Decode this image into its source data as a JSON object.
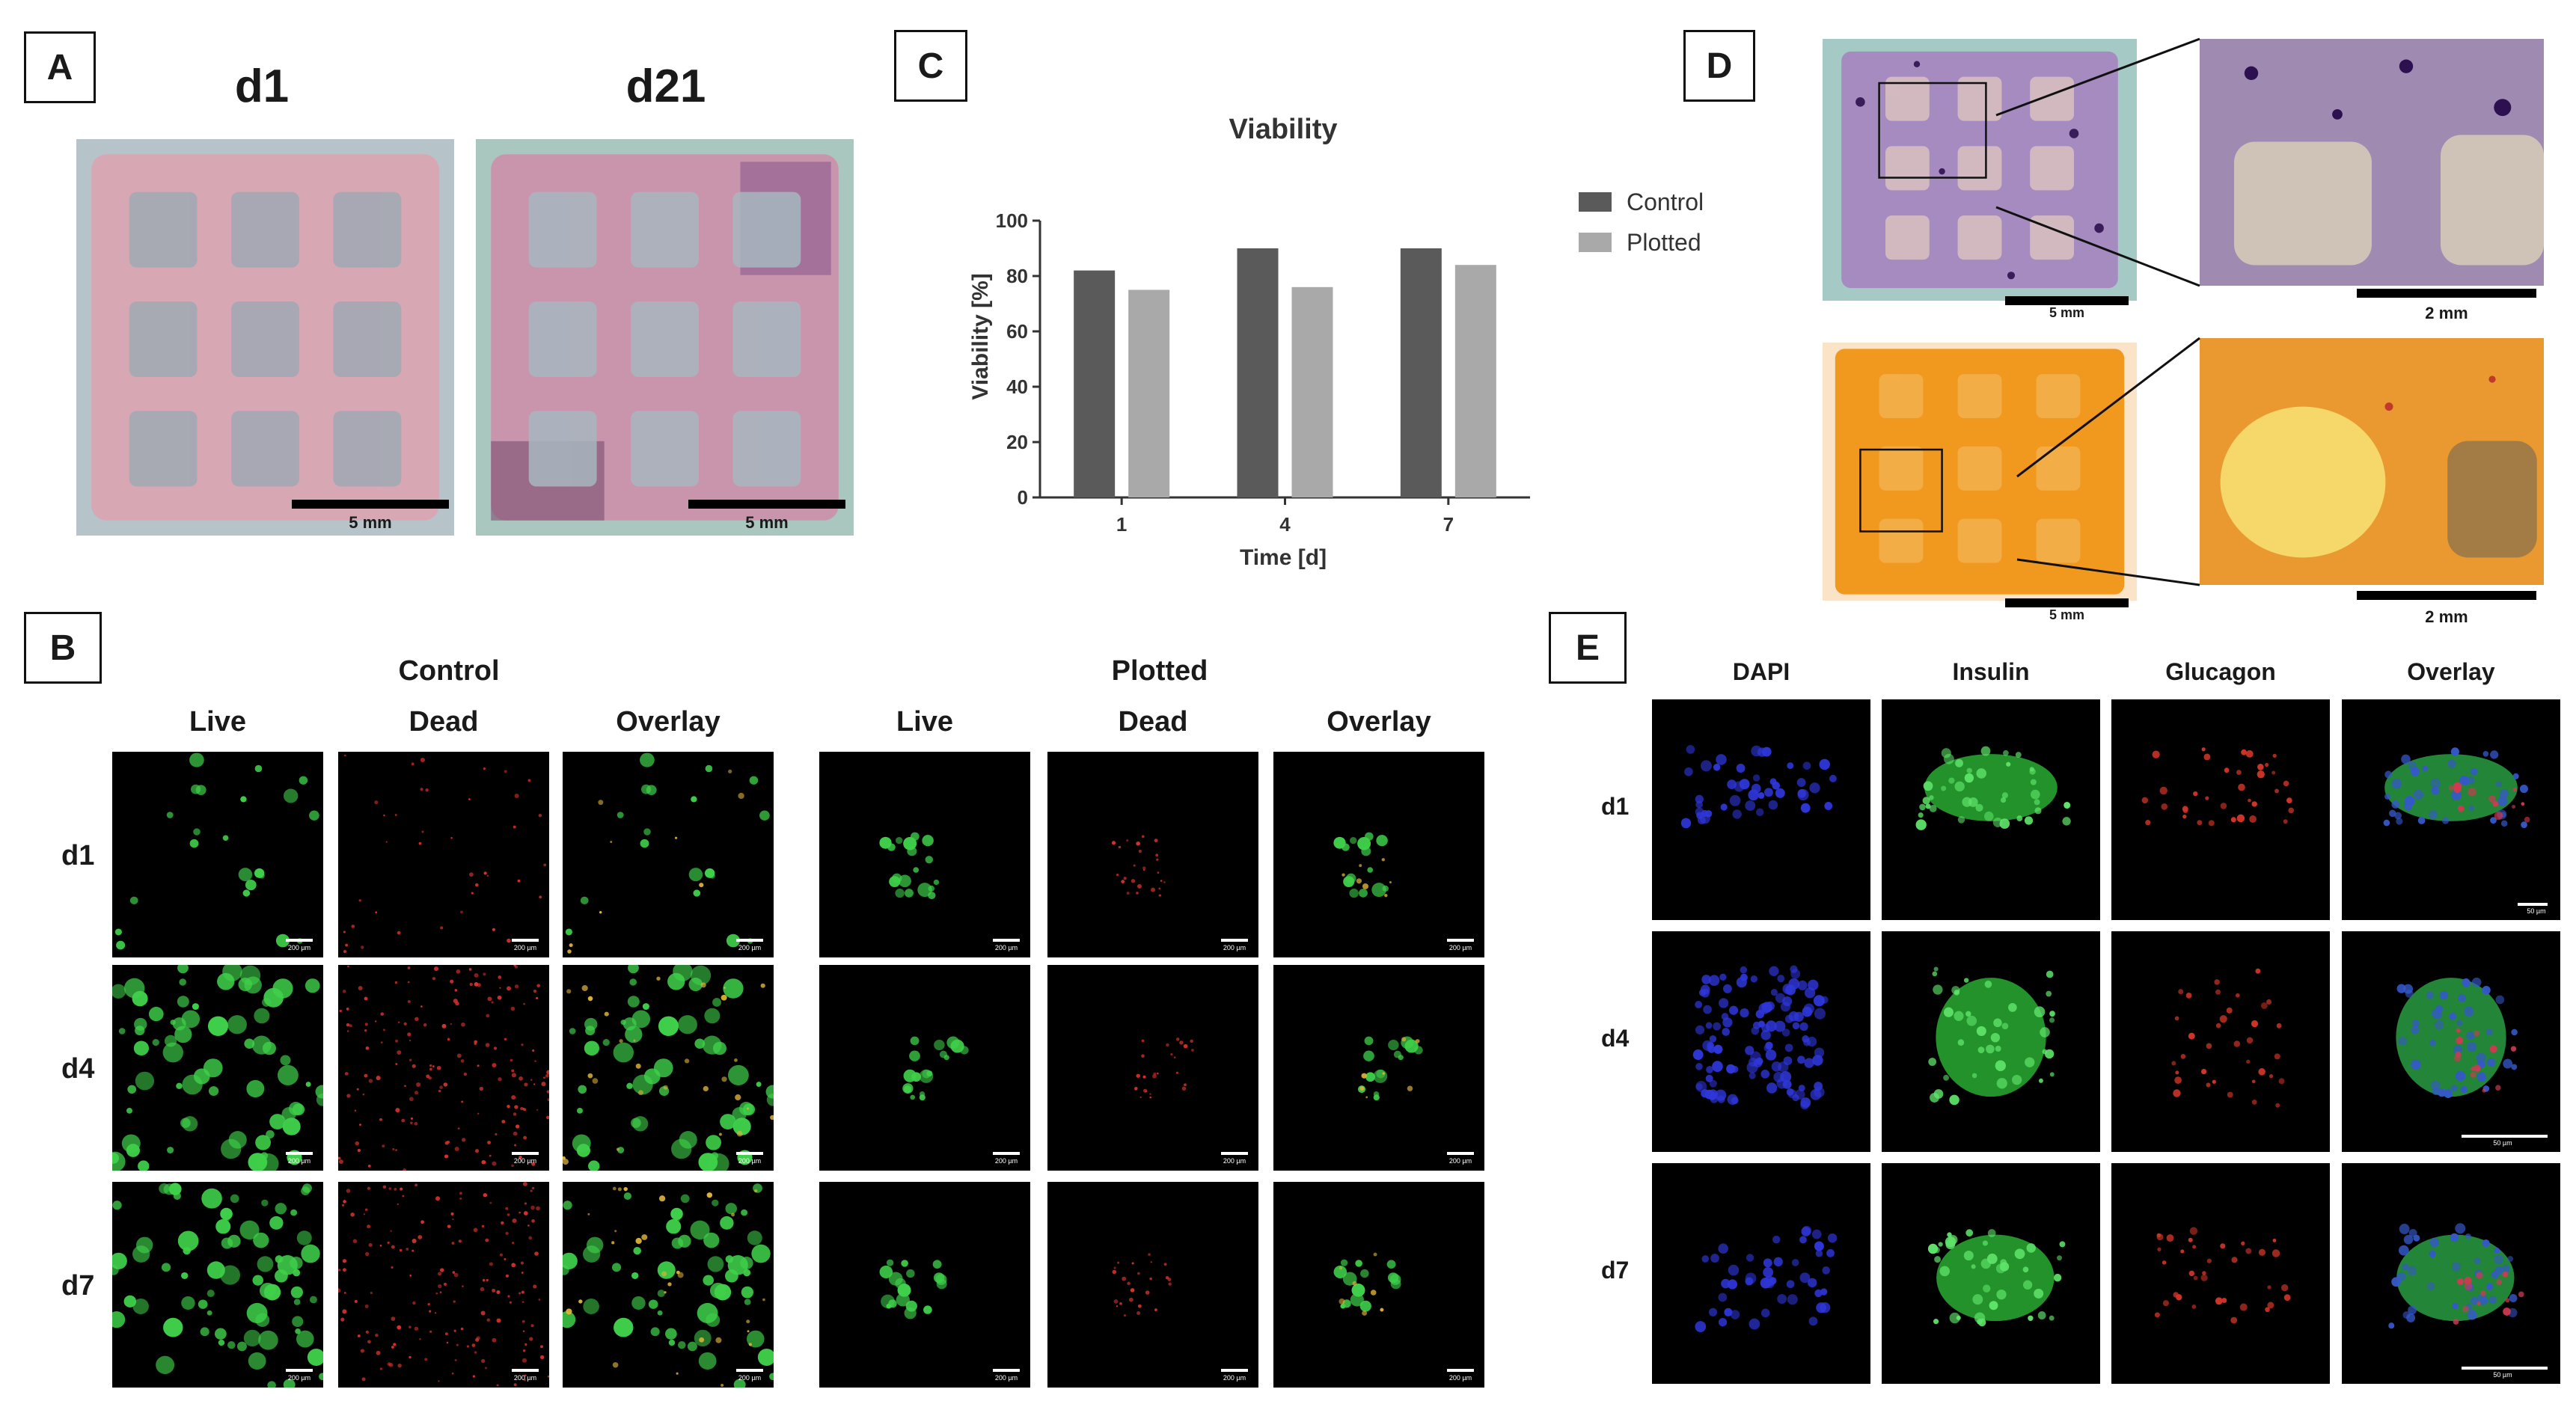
{
  "panels": {
    "A": {
      "letter": "A",
      "headers": [
        "d1",
        "d21"
      ],
      "scale": "5 mm"
    },
    "B": {
      "letter": "B",
      "groups": [
        "Control",
        "Plotted"
      ],
      "columns": [
        "Live",
        "Dead",
        "Overlay"
      ],
      "rows": [
        "d1",
        "d4",
        "d7"
      ],
      "scale": "200 µm"
    },
    "C": {
      "letter": "C"
    },
    "D": {
      "letter": "D",
      "scale_main": "5 mm",
      "scale_zoom": "2 mm"
    },
    "E": {
      "letter": "E",
      "columns": [
        "DAPI",
        "Insulin",
        "Glucagon",
        "Overlay"
      ],
      "rows": [
        "d1",
        "d4",
        "d7"
      ],
      "scale": "50 µm"
    }
  },
  "chart_data": {
    "type": "bar",
    "title": "Viability",
    "xlabel": "Time [d]",
    "ylabel": "Viability [%]",
    "categories": [
      "1",
      "4",
      "7"
    ],
    "ylim": [
      0,
      100
    ],
    "yticks": [
      0,
      20,
      40,
      60,
      80,
      100
    ],
    "legend_position": "right",
    "series": [
      {
        "name": "Control",
        "values": [
          82,
          90,
          90
        ],
        "color": "#5a5a5a"
      },
      {
        "name": "Plotted",
        "values": [
          75,
          76,
          84
        ],
        "color": "#a9a9a9"
      }
    ]
  }
}
